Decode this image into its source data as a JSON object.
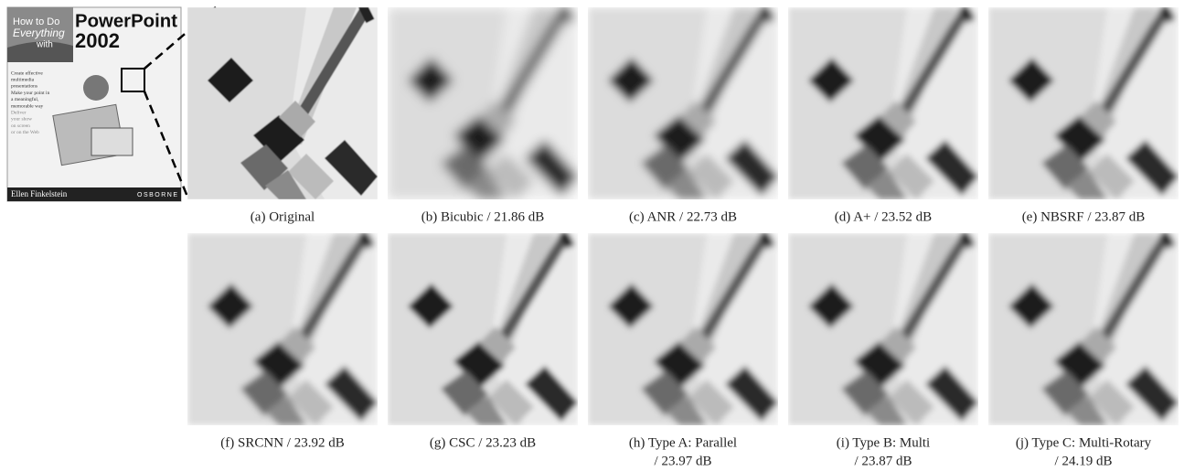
{
  "cover": {
    "line1": "How to Do",
    "line2": "Everything",
    "line3": "with",
    "product": "PowerPoint",
    "version": "2002",
    "blurb": [
      "Create effective",
      "multimedia",
      "presentations",
      "Make your point in",
      "a meaningful,",
      "memorable way",
      "Deliver",
      "your show",
      "on screen",
      "or on the Web"
    ],
    "author": "Ellen Finkelstein",
    "publisher": "OSBORNE"
  },
  "panels": [
    {
      "caption": [
        "(a) Original"
      ]
    },
    {
      "caption": [
        "(b) Bicubic / 21.86 dB"
      ]
    },
    {
      "caption": [
        "(c) ANR / 22.73 dB"
      ]
    },
    {
      "caption": [
        "(d) A+ / 23.52 dB"
      ]
    },
    {
      "caption": [
        "(e) NBSRF / 23.87 dB"
      ]
    },
    {
      "caption": [
        "(f) SRCNN / 23.92 dB"
      ]
    },
    {
      "caption": [
        "(g) CSC / 23.23 dB"
      ]
    },
    {
      "caption": [
        "(h) Type A: Parallel",
        "/ 23.97 dB"
      ]
    },
    {
      "caption": [
        "(i) Type B: Multi",
        "/ 23.87 dB"
      ]
    },
    {
      "caption": [
        "(j) Type C: Multi-Rotary",
        "/ 24.19 dB"
      ]
    }
  ]
}
